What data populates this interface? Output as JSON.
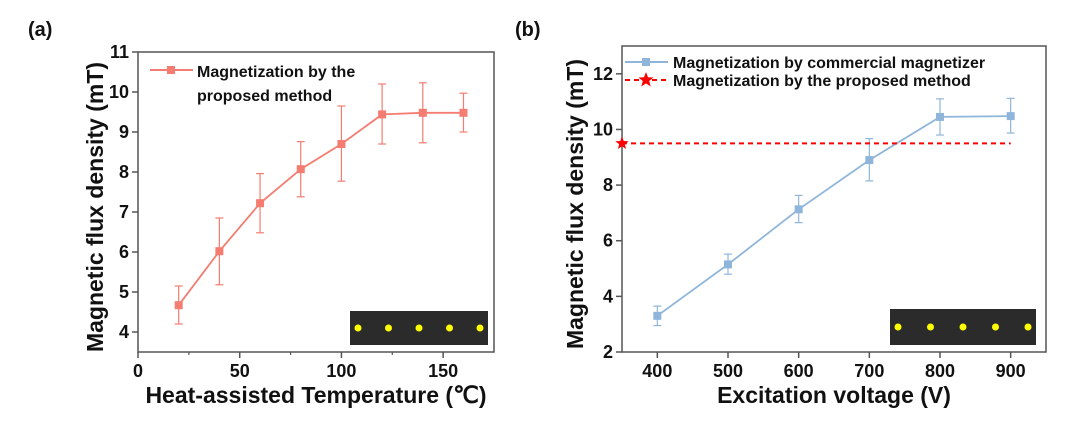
{
  "chart_data": [
    {
      "type": "line",
      "panel_label": "(a)",
      "xlabel": "Heat-assisted Temperature (℃)",
      "ylabel": "Magnetic flux density (mT)",
      "xlim": [
        0,
        175
      ],
      "ylim": [
        3.5,
        11
      ],
      "xticks": [
        0,
        50,
        100,
        150
      ],
      "yticks": [
        4,
        5,
        6,
        7,
        8,
        9,
        10,
        11
      ],
      "grid": false,
      "legend_position": "top-left",
      "series": [
        {
          "name": "Magnetization by the proposed method",
          "legend_lines": [
            "Magnetization by the",
            "proposed method"
          ],
          "color": "#f47c70",
          "marker": "square",
          "x": [
            20,
            40,
            60,
            80,
            100,
            120,
            140,
            160
          ],
          "y": [
            4.67,
            6.02,
            7.22,
            8.07,
            8.7,
            9.44,
            9.48,
            9.48
          ],
          "err_low": [
            4.2,
            5.18,
            6.48,
            7.38,
            7.77,
            8.7,
            8.73,
            9.0
          ],
          "err_high": [
            5.15,
            6.85,
            7.96,
            8.76,
            9.65,
            10.2,
            10.23,
            9.97
          ]
        }
      ],
      "inset": {
        "background": "#2b2b2b",
        "dot_color": "#ffff00",
        "dots": 5
      }
    },
    {
      "type": "line",
      "panel_label": "(b)",
      "xlabel": "Excitation voltage (V)",
      "ylabel": "Magnetic flux density (mT)",
      "xlim": [
        350,
        950
      ],
      "ylim": [
        2,
        13
      ],
      "xticks": [
        400,
        500,
        600,
        700,
        800,
        900
      ],
      "yticks": [
        2,
        4,
        6,
        8,
        10,
        12
      ],
      "grid": false,
      "legend_position": "top",
      "series": [
        {
          "name": "Magnetization by commercial magnetizer",
          "legend_lines": [
            "Magnetization by commercial magnetizer"
          ],
          "color": "#8fb6da",
          "marker": "square",
          "x": [
            400,
            500,
            600,
            700,
            800,
            900
          ],
          "y": [
            3.3,
            5.15,
            7.13,
            8.9,
            10.45,
            10.48
          ],
          "err_low": [
            2.95,
            4.8,
            6.65,
            8.15,
            9.8,
            9.87
          ],
          "err_high": [
            3.65,
            5.52,
            7.63,
            9.67,
            11.1,
            11.12
          ]
        },
        {
          "name": "Magnetization by the proposed method",
          "legend_lines": [
            "Magnetization by the proposed method"
          ],
          "color": "#ff0000",
          "marker": "star",
          "style": "dashed",
          "x": [
            350,
            900
          ],
          "y": [
            9.5,
            9.5
          ],
          "marker_x": [
            350
          ]
        }
      ],
      "inset": {
        "background": "#2b2b2b",
        "dot_color": "#ffff00",
        "dots": 5
      }
    }
  ]
}
